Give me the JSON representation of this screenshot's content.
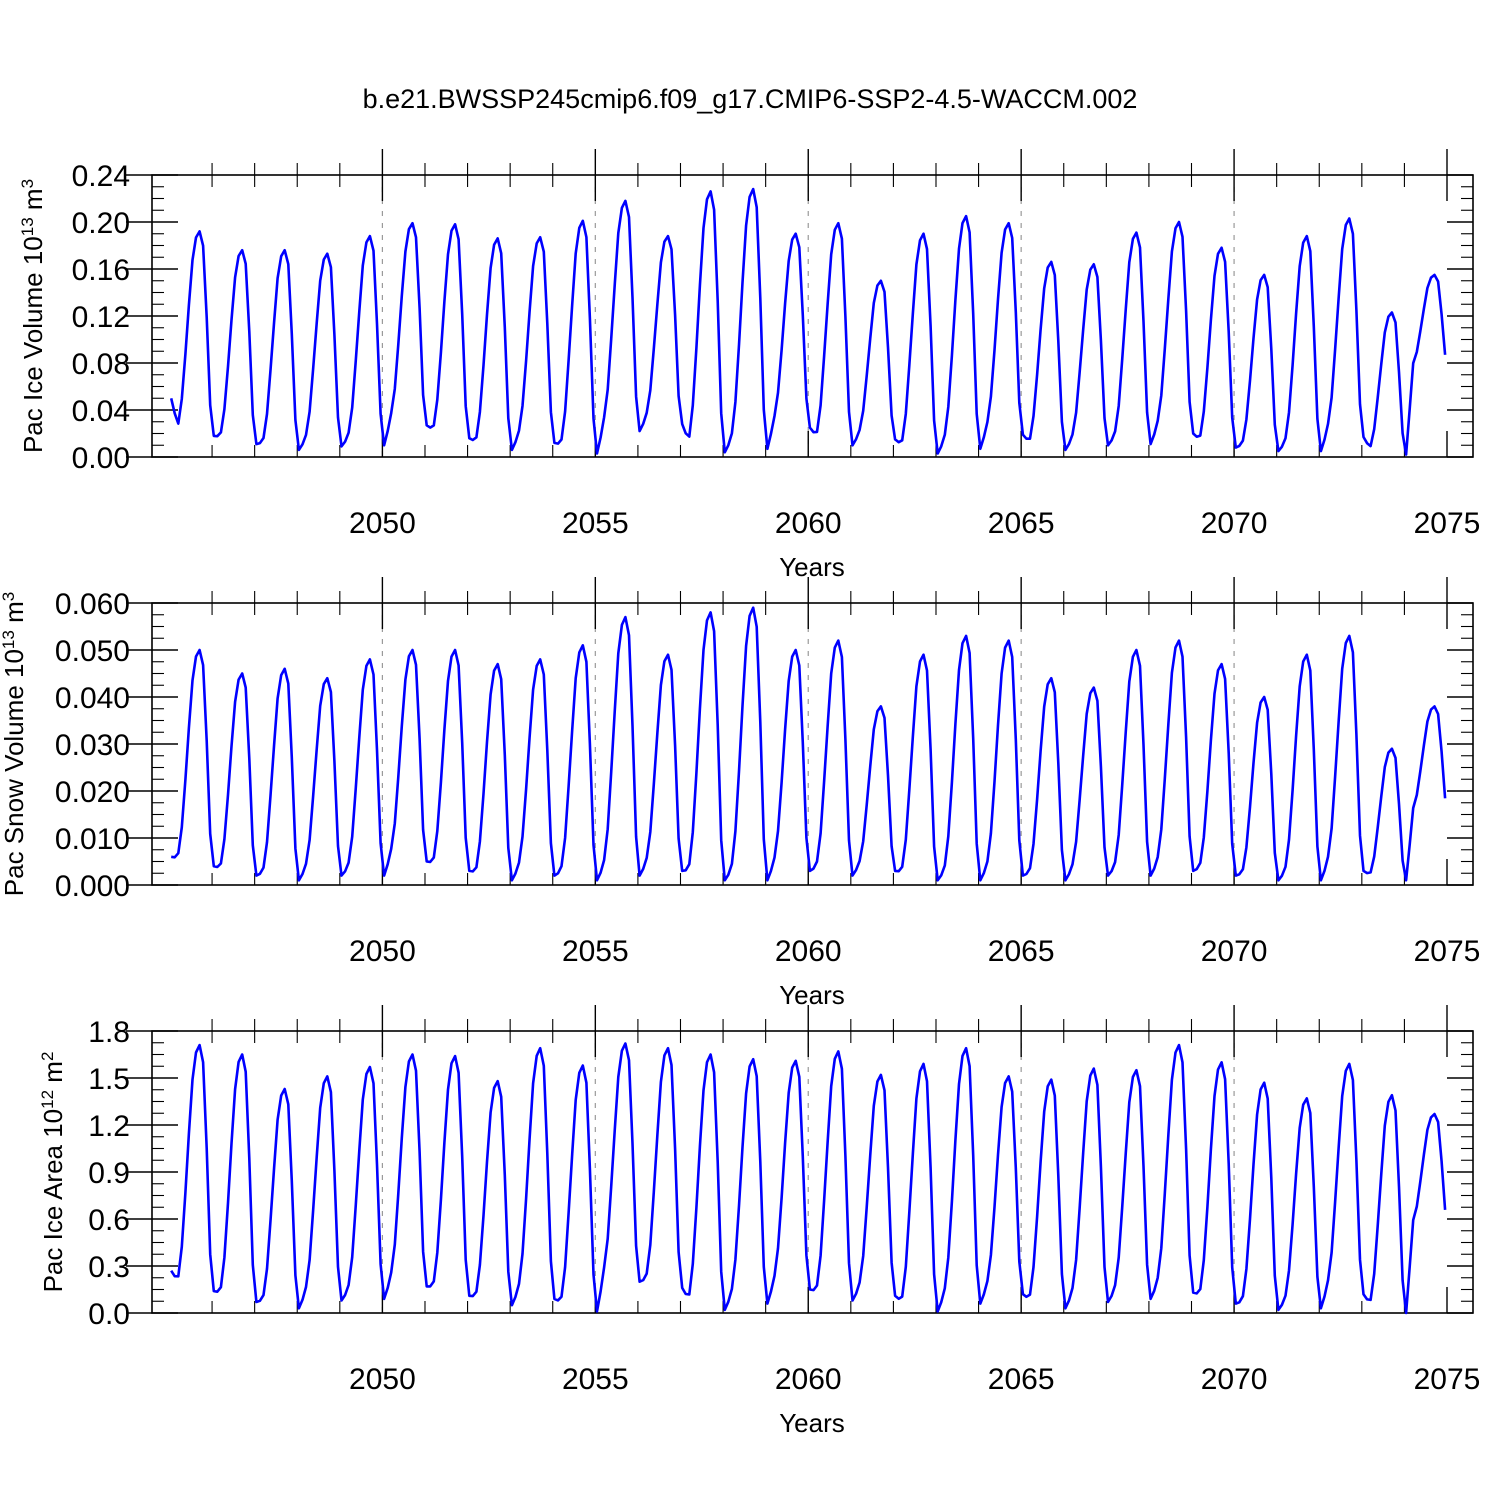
{
  "title": "b.e21.BWSSP245cmip6.f09_g17.CMIP6-SSP2-4.5-WACCM.002",
  "colors": {
    "line": "#0000ff",
    "axis": "#000000",
    "grid": "#9a9a9a"
  },
  "chart_data": [
    {
      "type": "line",
      "name": "pac-ice-volume",
      "title": "",
      "xlabel": "Years",
      "ylabel_main": "Pac Ice Volume 10",
      "ylabel_exp": "13",
      "ylabel_unit": " m",
      "ylabel_unit_exp": "3",
      "xlim": [
        2045.2,
        2075.0
      ],
      "ylim": [
        0.0,
        0.24
      ],
      "yticks": [
        0.0,
        0.04,
        0.08,
        0.12,
        0.16,
        0.2,
        0.24
      ],
      "ytick_labels": [
        "0.00",
        "0.04",
        "0.08",
        "0.12",
        "0.16",
        "0.20",
        "0.24"
      ],
      "xticks": [
        2050,
        2055,
        2060,
        2065,
        2070,
        2075
      ],
      "xtick_labels": [
        "2050",
        "2055",
        "2060",
        "2065",
        "2070",
        "2075"
      ],
      "x_start": 2045.04,
      "x_step": 0.083333,
      "y_min": [
        0.018,
        0.011,
        0.006,
        0.009,
        0.01,
        0.027,
        0.016,
        0.006,
        0.012,
        0.003,
        0.022,
        0.028,
        0.004,
        0.007,
        0.025,
        0.01,
        0.015,
        0.003,
        0.007,
        0.019,
        0.006,
        0.01,
        0.011,
        0.02,
        0.008,
        0.005,
        0.005,
        0.017,
        0.002,
        0.075
      ],
      "y_max": [
        0.192,
        0.176,
        0.176,
        0.173,
        0.188,
        0.199,
        0.198,
        0.186,
        0.187,
        0.201,
        0.218,
        0.188,
        0.226,
        0.228,
        0.19,
        0.199,
        0.15,
        0.19,
        0.205,
        0.199,
        0.166,
        0.164,
        0.191,
        0.2,
        0.178,
        0.155,
        0.188,
        0.203,
        0.123,
        0.155
      ],
      "y_start": 0.05
    },
    {
      "type": "line",
      "name": "pac-snow-volume",
      "title": "",
      "xlabel": "Years",
      "ylabel_main": "Pac Snow Volume 10",
      "ylabel_exp": "13",
      "ylabel_unit": " m",
      "ylabel_unit_exp": "3",
      "xlim": [
        2045.2,
        2075.0
      ],
      "ylim": [
        0.0,
        0.06
      ],
      "yticks": [
        0.0,
        0.01,
        0.02,
        0.03,
        0.04,
        0.05,
        0.06
      ],
      "ytick_labels": [
        "0.000",
        "0.010",
        "0.020",
        "0.030",
        "0.040",
        "0.050",
        "0.060"
      ],
      "xticks": [
        2050,
        2055,
        2060,
        2065,
        2070,
        2075
      ],
      "xtick_labels": [
        "2050",
        "2055",
        "2060",
        "2065",
        "2070",
        "2075"
      ],
      "x_start": 2045.04,
      "x_step": 0.083333,
      "y_min": [
        0.004,
        0.002,
        0.001,
        0.002,
        0.002,
        0.005,
        0.003,
        0.001,
        0.002,
        0.001,
        0.002,
        0.003,
        0.001,
        0.001,
        0.003,
        0.002,
        0.003,
        0.001,
        0.001,
        0.002,
        0.001,
        0.002,
        0.002,
        0.003,
        0.002,
        0.001,
        0.001,
        0.003,
        0.001,
        0.015
      ],
      "y_max": [
        0.05,
        0.045,
        0.046,
        0.044,
        0.048,
        0.05,
        0.05,
        0.047,
        0.048,
        0.051,
        0.057,
        0.049,
        0.058,
        0.059,
        0.05,
        0.052,
        0.038,
        0.049,
        0.053,
        0.052,
        0.044,
        0.042,
        0.05,
        0.052,
        0.047,
        0.04,
        0.049,
        0.053,
        0.029,
        0.038
      ],
      "y_start": 0.006
    },
    {
      "type": "line",
      "name": "pac-ice-area",
      "title": "",
      "xlabel": "Years",
      "ylabel_main": "Pac Ice Area 10",
      "ylabel_exp": "12",
      "ylabel_unit": " m",
      "ylabel_unit_exp": "2",
      "xlim": [
        2045.2,
        2075.0
      ],
      "ylim": [
        0.0,
        1.8
      ],
      "yticks": [
        0.0,
        0.3,
        0.6,
        0.9,
        1.2,
        1.5,
        1.8
      ],
      "ytick_labels": [
        "0.0",
        "0.3",
        "0.6",
        "0.9",
        "1.2",
        "1.5",
        "1.8"
      ],
      "xticks": [
        2050,
        2055,
        2060,
        2065,
        2070,
        2075
      ],
      "xtick_labels": [
        "2050",
        "2055",
        "2060",
        "2065",
        "2070",
        "2075"
      ],
      "x_start": 2045.04,
      "x_step": 0.083333,
      "y_min": [
        0.14,
        0.07,
        0.03,
        0.08,
        0.09,
        0.17,
        0.11,
        0.05,
        0.09,
        0.01,
        0.2,
        0.16,
        0.02,
        0.06,
        0.15,
        0.08,
        0.11,
        0.01,
        0.06,
        0.12,
        0.03,
        0.07,
        0.09,
        0.13,
        0.06,
        0.02,
        0.03,
        0.12,
        0.0,
        0.55
      ],
      "y_max": [
        1.71,
        1.65,
        1.43,
        1.51,
        1.57,
        1.65,
        1.64,
        1.48,
        1.69,
        1.58,
        1.72,
        1.69,
        1.65,
        1.62,
        1.61,
        1.67,
        1.52,
        1.59,
        1.69,
        1.51,
        1.49,
        1.56,
        1.55,
        1.71,
        1.6,
        1.47,
        1.37,
        1.59,
        1.39,
        1.27
      ],
      "y_start": 0.27
    }
  ]
}
